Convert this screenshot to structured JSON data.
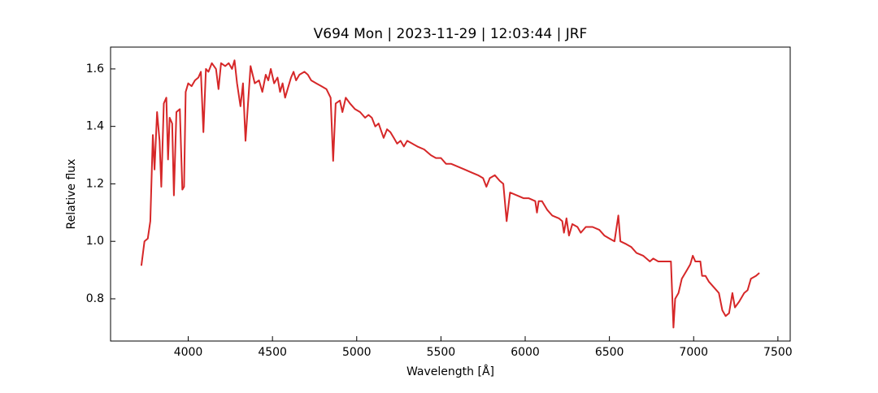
{
  "chart_data": {
    "type": "line",
    "title": "V694 Mon | 2023-11-29 | 12:03:44 | JRF",
    "x_label": "Wavelength [Å]",
    "y_label": "Relative flux",
    "xlim": [
      3539,
      7573
    ],
    "ylim": [
      0.653,
      1.676
    ],
    "xticks": [
      4000,
      4500,
      5000,
      5500,
      6000,
      6500,
      7000,
      7500
    ],
    "yticks": [
      {
        "value": 0.8,
        "label": "0.8"
      },
      {
        "value": 1.0,
        "label": "1.0"
      },
      {
        "value": 1.2,
        "label": "1.2"
      },
      {
        "value": 1.4,
        "label": "1.4"
      },
      {
        "value": 1.6,
        "label": "1.6"
      }
    ],
    "grid": false,
    "x": [
      3722,
      3740,
      3760,
      3775,
      3790,
      3800,
      3815,
      3830,
      3840,
      3855,
      3870,
      3880,
      3890,
      3905,
      3915,
      3930,
      3950,
      3965,
      3975,
      3985,
      4000,
      4020,
      4040,
      4060,
      4075,
      4090,
      4105,
      4120,
      4140,
      4165,
      4180,
      4195,
      4220,
      4240,
      4260,
      4275,
      4290,
      4310,
      4325,
      4340,
      4355,
      4370,
      4395,
      4420,
      4440,
      4460,
      4475,
      4490,
      4510,
      4530,
      4545,
      4560,
      4575,
      4590,
      4610,
      4625,
      4640,
      4660,
      4690,
      4710,
      4730,
      4760,
      4790,
      4820,
      4845,
      4860,
      4875,
      4900,
      4915,
      4935,
      4960,
      4990,
      5020,
      5050,
      5070,
      5090,
      5110,
      5130,
      5160,
      5180,
      5200,
      5220,
      5240,
      5260,
      5280,
      5300,
      5330,
      5360,
      5400,
      5440,
      5470,
      5500,
      5530,
      5560,
      5600,
      5640,
      5680,
      5720,
      5750,
      5770,
      5790,
      5820,
      5850,
      5870,
      5890,
      5910,
      5950,
      5990,
      6020,
      6060,
      6070,
      6080,
      6100,
      6130,
      6160,
      6200,
      6220,
      6230,
      6245,
      6260,
      6280,
      6310,
      6330,
      6360,
      6400,
      6440,
      6470,
      6500,
      6530,
      6553,
      6565,
      6600,
      6630,
      6660,
      6700,
      6740,
      6760,
      6790,
      6840,
      6865,
      6880,
      6890,
      6910,
      6930,
      6960,
      6980,
      6995,
      7010,
      7040,
      7050,
      7070,
      7090,
      7120,
      7150,
      7170,
      7190,
      7210,
      7230,
      7245,
      7270,
      7300,
      7320,
      7340,
      7370,
      7390
    ],
    "series": [
      {
        "color": "#d62728",
        "values": [
          0.915,
          1.0,
          1.01,
          1.07,
          1.37,
          1.25,
          1.45,
          1.35,
          1.19,
          1.48,
          1.5,
          1.285,
          1.43,
          1.41,
          1.16,
          1.45,
          1.46,
          1.18,
          1.19,
          1.52,
          1.55,
          1.54,
          1.56,
          1.57,
          1.59,
          1.38,
          1.6,
          1.59,
          1.62,
          1.6,
          1.53,
          1.62,
          1.61,
          1.62,
          1.6,
          1.63,
          1.55,
          1.47,
          1.55,
          1.35,
          1.48,
          1.61,
          1.55,
          1.56,
          1.52,
          1.58,
          1.56,
          1.6,
          1.55,
          1.57,
          1.52,
          1.55,
          1.5,
          1.53,
          1.57,
          1.59,
          1.56,
          1.58,
          1.59,
          1.58,
          1.56,
          1.55,
          1.54,
          1.53,
          1.5,
          1.28,
          1.48,
          1.49,
          1.45,
          1.5,
          1.48,
          1.46,
          1.45,
          1.43,
          1.44,
          1.43,
          1.4,
          1.41,
          1.36,
          1.39,
          1.38,
          1.36,
          1.34,
          1.35,
          1.33,
          1.35,
          1.34,
          1.33,
          1.32,
          1.3,
          1.29,
          1.29,
          1.27,
          1.27,
          1.26,
          1.25,
          1.24,
          1.23,
          1.22,
          1.19,
          1.22,
          1.23,
          1.21,
          1.2,
          1.07,
          1.17,
          1.16,
          1.15,
          1.15,
          1.14,
          1.1,
          1.14,
          1.14,
          1.11,
          1.09,
          1.08,
          1.07,
          1.03,
          1.08,
          1.02,
          1.06,
          1.05,
          1.03,
          1.05,
          1.05,
          1.04,
          1.02,
          1.01,
          1.0,
          1.09,
          1.0,
          0.99,
          0.98,
          0.96,
          0.95,
          0.93,
          0.94,
          0.93,
          0.93,
          0.93,
          0.7,
          0.8,
          0.82,
          0.87,
          0.9,
          0.92,
          0.95,
          0.93,
          0.93,
          0.88,
          0.88,
          0.86,
          0.84,
          0.82,
          0.76,
          0.74,
          0.75,
          0.82,
          0.77,
          0.79,
          0.82,
          0.83,
          0.87,
          0.88,
          0.89
        ]
      }
    ]
  }
}
